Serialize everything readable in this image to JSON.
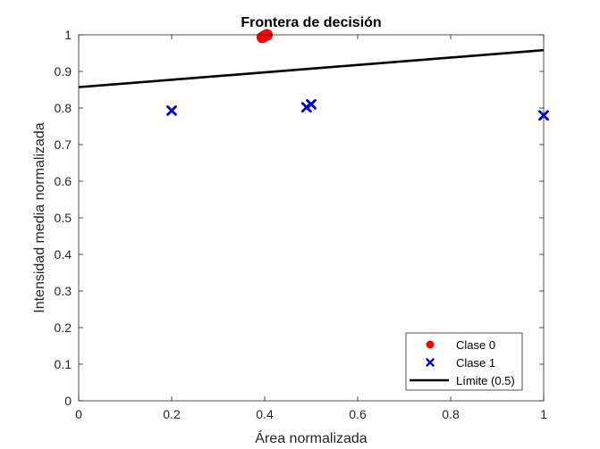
{
  "chart_data": {
    "type": "scatter",
    "title": "Frontera de decisión",
    "xlabel": "Área normalizada",
    "ylabel": "Intensidad media normalizada",
    "xlim": [
      0,
      1
    ],
    "ylim": [
      0,
      1
    ],
    "xticks": [
      0,
      0.2,
      0.4,
      0.6,
      0.8,
      1
    ],
    "xtick_labels": [
      "0",
      "0.2",
      "0.4",
      "0.6",
      "0.8",
      "1"
    ],
    "yticks": [
      0,
      0.1,
      0.2,
      0.3,
      0.4,
      0.5,
      0.6,
      0.7,
      0.8,
      0.9,
      1
    ],
    "ytick_labels": [
      "0",
      "0.1",
      "0.2",
      "0.3",
      "0.4",
      "0.5",
      "0.6",
      "0.7",
      "0.8",
      "0.9",
      "1"
    ],
    "grid": false,
    "legend_position": "bottom-right",
    "series": [
      {
        "name": "Clase 0",
        "marker": "circle",
        "color": "#ff0000",
        "points": [
          {
            "x": 0.395,
            "y": 0.993
          },
          {
            "x": 0.4,
            "y": 0.997
          },
          {
            "x": 0.405,
            "y": 1.0
          }
        ]
      },
      {
        "name": "Clase 1",
        "marker": "x",
        "color": "#0000cc",
        "points": [
          {
            "x": 0.2,
            "y": 0.793
          },
          {
            "x": 0.49,
            "y": 0.802
          },
          {
            "x": 0.5,
            "y": 0.81
          },
          {
            "x": 1.0,
            "y": 0.78
          }
        ]
      },
      {
        "name": "Límite (0.5)",
        "type": "line",
        "color": "#000000",
        "points": [
          {
            "x": 0,
            "y": 0.857
          },
          {
            "x": 1,
            "y": 0.958
          }
        ]
      }
    ]
  }
}
